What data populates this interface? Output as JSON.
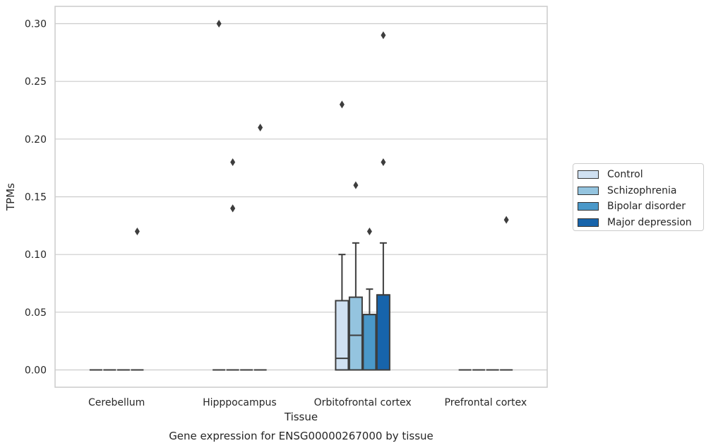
{
  "chart_data": {
    "type": "box",
    "xlabel": "Tissue",
    "ylabel": "TPMs",
    "caption": "Gene expression for ENSG00000267000 by tissue",
    "ylim": [
      -0.015,
      0.315
    ],
    "yticks": [
      "0.00",
      "0.05",
      "0.10",
      "0.15",
      "0.20",
      "0.25",
      "0.30"
    ],
    "grid": "horizontal",
    "legend_position": "right",
    "categories": [
      "Cerebellum",
      "Hipppocampus",
      "Orbitofrontal cortex",
      "Prefrontal cortex"
    ],
    "series": [
      {
        "name": "Control",
        "color": "#d0e1f2",
        "boxes": [
          {
            "q1": 0,
            "median": 0,
            "q3": 0,
            "whisker_low": 0,
            "whisker_high": 0,
            "outliers": []
          },
          {
            "q1": 0,
            "median": 0,
            "q3": 0,
            "whisker_low": 0,
            "whisker_high": 0,
            "outliers": [
              0.3
            ]
          },
          {
            "q1": 0,
            "median": 0.01,
            "q3": 0.06,
            "whisker_low": 0,
            "whisker_high": 0.1,
            "outliers": [
              0.23
            ]
          },
          {
            "q1": 0,
            "median": 0,
            "q3": 0,
            "whisker_low": 0,
            "whisker_high": 0,
            "outliers": []
          }
        ]
      },
      {
        "name": "Schizophrenia",
        "color": "#94c4df",
        "boxes": [
          {
            "q1": 0,
            "median": 0,
            "q3": 0,
            "whisker_low": 0,
            "whisker_high": 0,
            "outliers": []
          },
          {
            "q1": 0,
            "median": 0,
            "q3": 0,
            "whisker_low": 0,
            "whisker_high": 0,
            "outliers": [
              0.18,
              0.14,
              0.14
            ]
          },
          {
            "q1": 0,
            "median": 0.03,
            "q3": 0.063,
            "whisker_low": 0,
            "whisker_high": 0.11,
            "outliers": [
              0.16
            ]
          },
          {
            "q1": 0,
            "median": 0,
            "q3": 0,
            "whisker_low": 0,
            "whisker_high": 0,
            "outliers": []
          }
        ]
      },
      {
        "name": "Bipolar disorder",
        "color": "#4a98c9",
        "boxes": [
          {
            "q1": 0,
            "median": 0,
            "q3": 0,
            "whisker_low": 0,
            "whisker_high": 0,
            "outliers": []
          },
          {
            "q1": 0,
            "median": 0,
            "q3": 0,
            "whisker_low": 0,
            "whisker_high": 0,
            "outliers": []
          },
          {
            "q1": 0,
            "median": 0.048,
            "q3": 0.048,
            "whisker_low": 0,
            "whisker_high": 0.07,
            "outliers": [
              0.12
            ]
          },
          {
            "q1": 0,
            "median": 0,
            "q3": 0,
            "whisker_low": 0,
            "whisker_high": 0,
            "outliers": []
          }
        ]
      },
      {
        "name": "Major depression",
        "color": "#1764ab",
        "boxes": [
          {
            "q1": 0,
            "median": 0,
            "q3": 0,
            "whisker_low": 0,
            "whisker_high": 0,
            "outliers": [
              0.12
            ]
          },
          {
            "q1": 0,
            "median": 0,
            "q3": 0,
            "whisker_low": 0,
            "whisker_high": 0,
            "outliers": [
              0.21
            ]
          },
          {
            "q1": 0,
            "median": 0.065,
            "q3": 0.065,
            "whisker_low": 0,
            "whisker_high": 0.11,
            "outliers": [
              0.29,
              0.18
            ]
          },
          {
            "q1": 0,
            "median": 0,
            "q3": 0,
            "whisker_low": 0,
            "whisker_high": 0,
            "outliers": [
              0.13
            ]
          }
        ]
      }
    ]
  }
}
